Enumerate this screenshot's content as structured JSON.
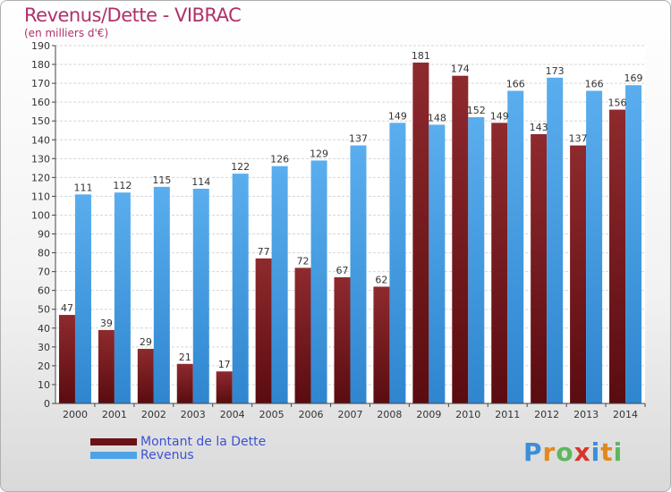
{
  "header": {
    "title": "Revenus/Dette - VIBRAC",
    "subtitle": "(en milliers d'€)"
  },
  "colors": {
    "dette": "#7a1e22",
    "revenus": "#4da3e6",
    "title": "#b0306a"
  },
  "legend": {
    "items": [
      {
        "label": "Montant de la Dette",
        "color": "#7a1e22"
      },
      {
        "label": "Revenus",
        "color": "#4da3e6"
      }
    ]
  },
  "logo": {
    "text": "Proxiti"
  },
  "chart_data": {
    "type": "bar",
    "title": "Revenus/Dette - VIBRAC",
    "subtitle": "(en milliers d'€)",
    "categories": [
      "2000",
      "2001",
      "2002",
      "2003",
      "2004",
      "2005",
      "2006",
      "2007",
      "2008",
      "2009",
      "2010",
      "2011",
      "2012",
      "2013",
      "2014"
    ],
    "series": [
      {
        "name": "Montant de la Dette",
        "values": [
          47,
          39,
          29,
          21,
          17,
          77,
          72,
          67,
          62,
          181,
          174,
          149,
          143,
          137,
          156
        ]
      },
      {
        "name": "Revenus",
        "values": [
          111,
          112,
          115,
          114,
          122,
          126,
          129,
          137,
          149,
          148,
          152,
          166,
          173,
          166,
          169
        ]
      }
    ],
    "ylim": [
      0,
      190
    ],
    "yticks": [
      0,
      10,
      20,
      30,
      40,
      50,
      60,
      70,
      80,
      90,
      100,
      110,
      120,
      130,
      140,
      150,
      160,
      170,
      180,
      190
    ],
    "grid": true,
    "legend_position": "bottom-left"
  }
}
